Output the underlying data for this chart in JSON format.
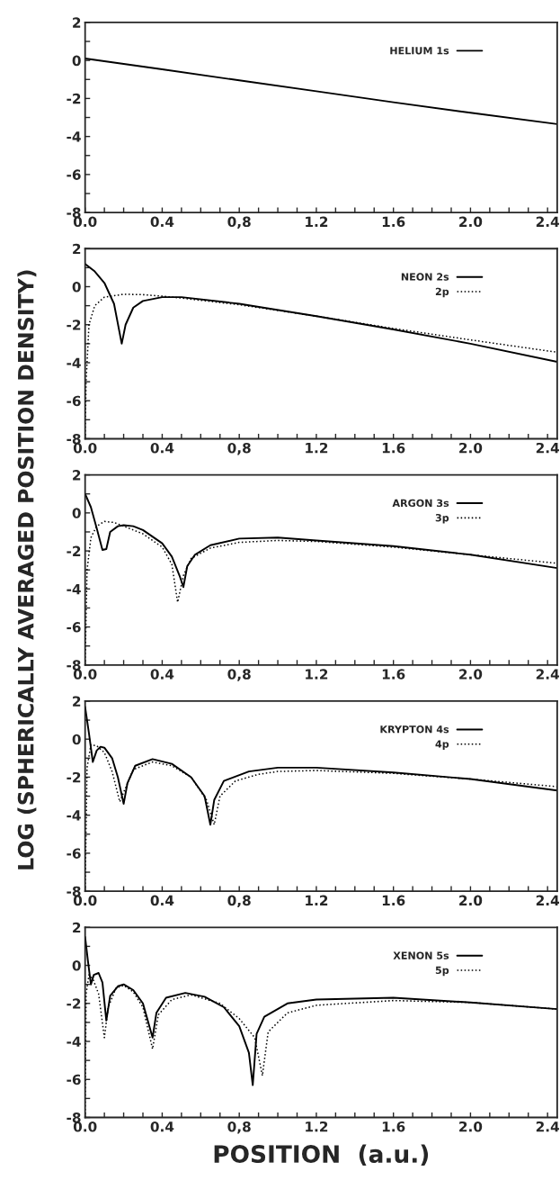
{
  "chart_data": [
    {
      "type": "line",
      "xlim": [
        0,
        2.45
      ],
      "ylim": [
        -8,
        2
      ],
      "xticks": [
        {
          "value": 0,
          "label": "0.0"
        },
        {
          "value": 0.1,
          "label": null
        },
        {
          "value": 0.2,
          "label": null
        },
        {
          "value": 0.3,
          "label": null
        },
        0.4,
        {
          "value": 0.5,
          "label": null
        },
        {
          "value": 0.6,
          "label": null
        },
        {
          "value": 0.7,
          "label": null
        },
        {
          "value": 0.8,
          "label": "0,8"
        },
        {
          "value": 0.9,
          "label": null
        },
        {
          "value": 1.0,
          "label": null
        },
        {
          "value": 1.1,
          "label": null
        },
        1.2,
        {
          "value": 1.3,
          "label": null
        },
        {
          "value": 1.4,
          "label": null
        },
        {
          "value": 1.5,
          "label": null
        },
        1.6,
        {
          "value": 1.7,
          "label": null
        },
        {
          "value": 1.8,
          "label": null
        },
        {
          "value": 1.9,
          "label": null
        },
        {
          "value": 2.0,
          "label": "2.0"
        },
        {
          "value": 2.1,
          "label": null
        },
        {
          "value": 2.2,
          "label": null
        },
        {
          "value": 2.3,
          "label": null
        },
        2.4
      ],
      "yticks": [
        -8,
        {
          "value": -7,
          "label": null
        },
        -6,
        {
          "value": -5,
          "label": null
        },
        -4,
        {
          "value": -3,
          "label": null
        },
        -2,
        {
          "value": -1,
          "label": null
        },
        0,
        {
          "value": 1,
          "label": null
        },
        2
      ],
      "legend": "top right",
      "series": [
        {
          "name": "HELIUM 1s",
          "color": "#000000",
          "line_style": "solid",
          "x": [
            0,
            0.4,
            0.8,
            1.2,
            1.6,
            2.0,
            2.45
          ],
          "values": [
            0.1,
            -0.47,
            -1.05,
            -1.62,
            -2.2,
            -2.75,
            -3.35
          ]
        }
      ]
    },
    {
      "type": "line",
      "xlim": [
        0,
        2.45
      ],
      "ylim": [
        -8,
        2
      ],
      "xticks": [
        {
          "value": 0,
          "label": "0.0"
        },
        {
          "value": 0.1,
          "label": null
        },
        {
          "value": 0.2,
          "label": null
        },
        {
          "value": 0.3,
          "label": null
        },
        0.4,
        {
          "value": 0.5,
          "label": null
        },
        {
          "value": 0.6,
          "label": null
        },
        {
          "value": 0.7,
          "label": null
        },
        {
          "value": 0.8,
          "label": "0,8"
        },
        {
          "value": 0.9,
          "label": null
        },
        {
          "value": 1.0,
          "label": null
        },
        {
          "value": 1.1,
          "label": null
        },
        1.2,
        {
          "value": 1.3,
          "label": null
        },
        {
          "value": 1.4,
          "label": null
        },
        {
          "value": 1.5,
          "label": null
        },
        1.6,
        {
          "value": 1.7,
          "label": null
        },
        {
          "value": 1.8,
          "label": null
        },
        {
          "value": 1.9,
          "label": null
        },
        {
          "value": 2.0,
          "label": "2.0"
        },
        {
          "value": 2.1,
          "label": null
        },
        {
          "value": 2.2,
          "label": null
        },
        {
          "value": 2.3,
          "label": null
        },
        2.4
      ],
      "yticks": [
        -8,
        {
          "value": -7,
          "label": null
        },
        -6,
        {
          "value": -5,
          "label": null
        },
        -4,
        {
          "value": -3,
          "label": null
        },
        -2,
        {
          "value": -1,
          "label": null
        },
        0,
        {
          "value": 1,
          "label": null
        },
        2
      ],
      "legend": "top right",
      "series": [
        {
          "name": "NEON 2s",
          "color": "#000000",
          "line_style": "solid",
          "x": [
            0,
            0.05,
            0.1,
            0.15,
            0.19,
            0.21,
            0.25,
            0.3,
            0.4,
            0.5,
            0.8,
            1.2,
            1.6,
            2.0,
            2.45
          ],
          "values": [
            1.2,
            0.8,
            0.2,
            -0.9,
            -3.0,
            -2.0,
            -1.1,
            -0.75,
            -0.55,
            -0.55,
            -0.9,
            -1.55,
            -2.25,
            -3.0,
            -3.95
          ]
        },
        {
          "name": "2p",
          "color": "#000000",
          "line_style": "dotted",
          "x": [
            0,
            0.005,
            0.02,
            0.05,
            0.1,
            0.2,
            0.3,
            0.4,
            0.5,
            0.8,
            1.2,
            1.6,
            2.0,
            2.45
          ],
          "values": [
            -8,
            -5,
            -2,
            -1,
            -0.55,
            -0.4,
            -0.42,
            -0.5,
            -0.6,
            -0.95,
            -1.55,
            -2.2,
            -2.8,
            -3.45
          ]
        }
      ]
    },
    {
      "type": "line",
      "xlim": [
        0,
        2.45
      ],
      "ylim": [
        -8,
        2
      ],
      "ylabel": "LOG (SPHERICALLY AVERAGED POSITION DENSITY)",
      "xticks": [
        {
          "value": 0,
          "label": "0.0"
        },
        {
          "value": 0.1,
          "label": null
        },
        {
          "value": 0.2,
          "label": null
        },
        {
          "value": 0.3,
          "label": null
        },
        0.4,
        {
          "value": 0.5,
          "label": null
        },
        {
          "value": 0.6,
          "label": null
        },
        {
          "value": 0.7,
          "label": null
        },
        {
          "value": 0.8,
          "label": "0,8"
        },
        {
          "value": 0.9,
          "label": null
        },
        {
          "value": 1.0,
          "label": null
        },
        {
          "value": 1.1,
          "label": null
        },
        1.2,
        {
          "value": 1.3,
          "label": null
        },
        {
          "value": 1.4,
          "label": null
        },
        {
          "value": 1.5,
          "label": null
        },
        1.6,
        {
          "value": 1.7,
          "label": null
        },
        {
          "value": 1.8,
          "label": null
        },
        {
          "value": 1.9,
          "label": null
        },
        {
          "value": 2.0,
          "label": "2.0"
        },
        {
          "value": 2.1,
          "label": null
        },
        {
          "value": 2.2,
          "label": null
        },
        {
          "value": 2.3,
          "label": null
        },
        2.4
      ],
      "yticks": [
        -8,
        {
          "value": -7,
          "label": null
        },
        -6,
        {
          "value": -5,
          "label": null
        },
        -4,
        {
          "value": -3,
          "label": null
        },
        -2,
        {
          "value": -1,
          "label": null
        },
        0,
        {
          "value": 1,
          "label": null
        },
        2
      ],
      "legend": "top right",
      "series": [
        {
          "name": "ARGON 3s",
          "color": "#000000",
          "line_style": "solid",
          "x": [
            0,
            0.03,
            0.06,
            0.09,
            0.11,
            0.13,
            0.17,
            0.2,
            0.25,
            0.3,
            0.4,
            0.45,
            0.49,
            0.51,
            0.53,
            0.57,
            0.65,
            0.8,
            1.0,
            1.2,
            1.6,
            2.0,
            2.45
          ],
          "values": [
            1.0,
            0.3,
            -0.8,
            -1.95,
            -1.9,
            -1.0,
            -0.7,
            -0.65,
            -0.7,
            -0.9,
            -1.6,
            -2.3,
            -3.3,
            -3.9,
            -2.8,
            -2.2,
            -1.7,
            -1.35,
            -1.3,
            -1.45,
            -1.75,
            -2.2,
            -2.9
          ]
        },
        {
          "name": "3p",
          "color": "#000000",
          "line_style": "dotted",
          "x": [
            0,
            0.01,
            0.03,
            0.06,
            0.1,
            0.15,
            0.2,
            0.3,
            0.4,
            0.45,
            0.48,
            0.51,
            0.55,
            0.65,
            0.8,
            1.0,
            1.2,
            1.6,
            2.0,
            2.45
          ],
          "values": [
            -8,
            -3,
            -1.3,
            -0.7,
            -0.45,
            -0.5,
            -0.7,
            -1.1,
            -1.8,
            -2.7,
            -4.7,
            -3.3,
            -2.4,
            -1.85,
            -1.55,
            -1.45,
            -1.5,
            -1.8,
            -2.2,
            -2.65
          ]
        }
      ]
    },
    {
      "type": "line",
      "xlim": [
        0,
        2.45
      ],
      "ylim": [
        -8,
        2
      ],
      "xticks": [
        {
          "value": 0,
          "label": "0.0"
        },
        {
          "value": 0.1,
          "label": null
        },
        {
          "value": 0.2,
          "label": null
        },
        {
          "value": 0.3,
          "label": null
        },
        0.4,
        {
          "value": 0.5,
          "label": null
        },
        {
          "value": 0.6,
          "label": null
        },
        {
          "value": 0.7,
          "label": null
        },
        {
          "value": 0.8,
          "label": "0,8"
        },
        {
          "value": 0.9,
          "label": null
        },
        {
          "value": 1.0,
          "label": null
        },
        {
          "value": 1.1,
          "label": null
        },
        1.2,
        {
          "value": 1.3,
          "label": null
        },
        {
          "value": 1.4,
          "label": null
        },
        {
          "value": 1.5,
          "label": null
        },
        1.6,
        {
          "value": 1.7,
          "label": null
        },
        {
          "value": 1.8,
          "label": null
        },
        {
          "value": 1.9,
          "label": null
        },
        {
          "value": 2.0,
          "label": "2.0"
        },
        {
          "value": 2.1,
          "label": null
        },
        {
          "value": 2.2,
          "label": null
        },
        {
          "value": 2.3,
          "label": null
        },
        2.4
      ],
      "yticks": [
        -8,
        {
          "value": -7,
          "label": null
        },
        -6,
        {
          "value": -5,
          "label": null
        },
        -4,
        {
          "value": -3,
          "label": null
        },
        -2,
        {
          "value": -1,
          "label": null
        },
        0,
        {
          "value": 1,
          "label": null
        },
        2
      ],
      "legend": "top right",
      "series": [
        {
          "name": "KRYPTON 4s",
          "color": "#000000",
          "line_style": "solid",
          "x": [
            0,
            0.02,
            0.04,
            0.06,
            0.08,
            0.1,
            0.14,
            0.17,
            0.2,
            0.22,
            0.26,
            0.35,
            0.45,
            0.55,
            0.62,
            0.65,
            0.67,
            0.72,
            0.85,
            1.0,
            1.2,
            1.6,
            2.0,
            2.45
          ],
          "values": [
            1.7,
            0.3,
            -1.2,
            -0.6,
            -0.4,
            -0.45,
            -1.0,
            -2.0,
            -3.4,
            -2.3,
            -1.4,
            -1.05,
            -1.3,
            -2.0,
            -3.0,
            -4.5,
            -3.2,
            -2.2,
            -1.7,
            -1.5,
            -1.5,
            -1.75,
            -2.1,
            -2.7
          ]
        },
        {
          "name": "4p",
          "color": "#000000",
          "line_style": "dotted",
          "x": [
            0,
            0.01,
            0.03,
            0.06,
            0.1,
            0.14,
            0.18,
            0.2,
            0.25,
            0.35,
            0.45,
            0.55,
            0.63,
            0.67,
            0.7,
            0.78,
            0.9,
            1.0,
            1.2,
            1.6,
            2.0,
            2.45
          ],
          "values": [
            -8,
            -1.5,
            -0.3,
            -0.35,
            -0.7,
            -1.7,
            -3.3,
            -2.8,
            -1.6,
            -1.2,
            -1.4,
            -2.0,
            -3.2,
            -4.5,
            -3.0,
            -2.2,
            -1.85,
            -1.7,
            -1.65,
            -1.8,
            -2.1,
            -2.5
          ]
        }
      ]
    },
    {
      "type": "line",
      "xlim": [
        0,
        2.45
      ],
      "ylim": [
        -8,
        2
      ],
      "xlabel": "POSITION  (a.u.)",
      "xticks": [
        {
          "value": 0,
          "label": "0.0"
        },
        {
          "value": 0.1,
          "label": null
        },
        {
          "value": 0.2,
          "label": null
        },
        {
          "value": 0.3,
          "label": null
        },
        0.4,
        {
          "value": 0.5,
          "label": null
        },
        {
          "value": 0.6,
          "label": null
        },
        {
          "value": 0.7,
          "label": null
        },
        {
          "value": 0.8,
          "label": "0,8"
        },
        {
          "value": 0.9,
          "label": null
        },
        {
          "value": 1.0,
          "label": null
        },
        {
          "value": 1.1,
          "label": null
        },
        1.2,
        {
          "value": 1.3,
          "label": null
        },
        {
          "value": 1.4,
          "label": null
        },
        {
          "value": 1.5,
          "label": null
        },
        1.6,
        {
          "value": 1.7,
          "label": null
        },
        {
          "value": 1.8,
          "label": null
        },
        {
          "value": 1.9,
          "label": null
        },
        {
          "value": 2.0,
          "label": "2.0"
        },
        {
          "value": 2.1,
          "label": null
        },
        {
          "value": 2.2,
          "label": null
        },
        {
          "value": 2.3,
          "label": null
        },
        2.4
      ],
      "yticks": [
        -8,
        {
          "value": -7,
          "label": null
        },
        -6,
        {
          "value": -5,
          "label": null
        },
        -4,
        {
          "value": -3,
          "label": null
        },
        -2,
        {
          "value": -1,
          "label": null
        },
        0,
        {
          "value": 1,
          "label": null
        },
        2
      ],
      "legend": "top right",
      "series": [
        {
          "name": "XENON 5s",
          "color": "#000000",
          "line_style": "solid",
          "x": [
            0,
            0.015,
            0.03,
            0.045,
            0.07,
            0.09,
            0.11,
            0.13,
            0.17,
            0.2,
            0.25,
            0.3,
            0.35,
            0.37,
            0.42,
            0.52,
            0.62,
            0.72,
            0.8,
            0.85,
            0.87,
            0.89,
            0.93,
            1.05,
            1.2,
            1.6,
            2.0,
            2.45
          ],
          "values": [
            1.5,
            0.2,
            -1.0,
            -0.5,
            -0.4,
            -0.9,
            -2.9,
            -1.6,
            -1.1,
            -1.0,
            -1.3,
            -2.0,
            -3.8,
            -2.5,
            -1.7,
            -1.45,
            -1.65,
            -2.2,
            -3.2,
            -4.6,
            -6.3,
            -3.6,
            -2.7,
            -2.0,
            -1.8,
            -1.7,
            -1.95,
            -2.3
          ]
        },
        {
          "name": "5p",
          "color": "#000000",
          "line_style": "dotted",
          "x": [
            0,
            0.005,
            0.02,
            0.04,
            0.07,
            0.1,
            0.12,
            0.16,
            0.2,
            0.25,
            0.3,
            0.35,
            0.38,
            0.45,
            0.55,
            0.7,
            0.8,
            0.88,
            0.92,
            0.95,
            1.05,
            1.2,
            1.6,
            2.0,
            2.45
          ],
          "values": [
            -8,
            -1.5,
            -0.5,
            -0.7,
            -1.5,
            -3.8,
            -2.2,
            -1.2,
            -1.05,
            -1.4,
            -2.2,
            -4.4,
            -2.6,
            -1.8,
            -1.55,
            -2.0,
            -2.8,
            -3.8,
            -5.8,
            -3.5,
            -2.5,
            -2.1,
            -1.85,
            -1.95,
            -2.3
          ]
        }
      ]
    }
  ]
}
